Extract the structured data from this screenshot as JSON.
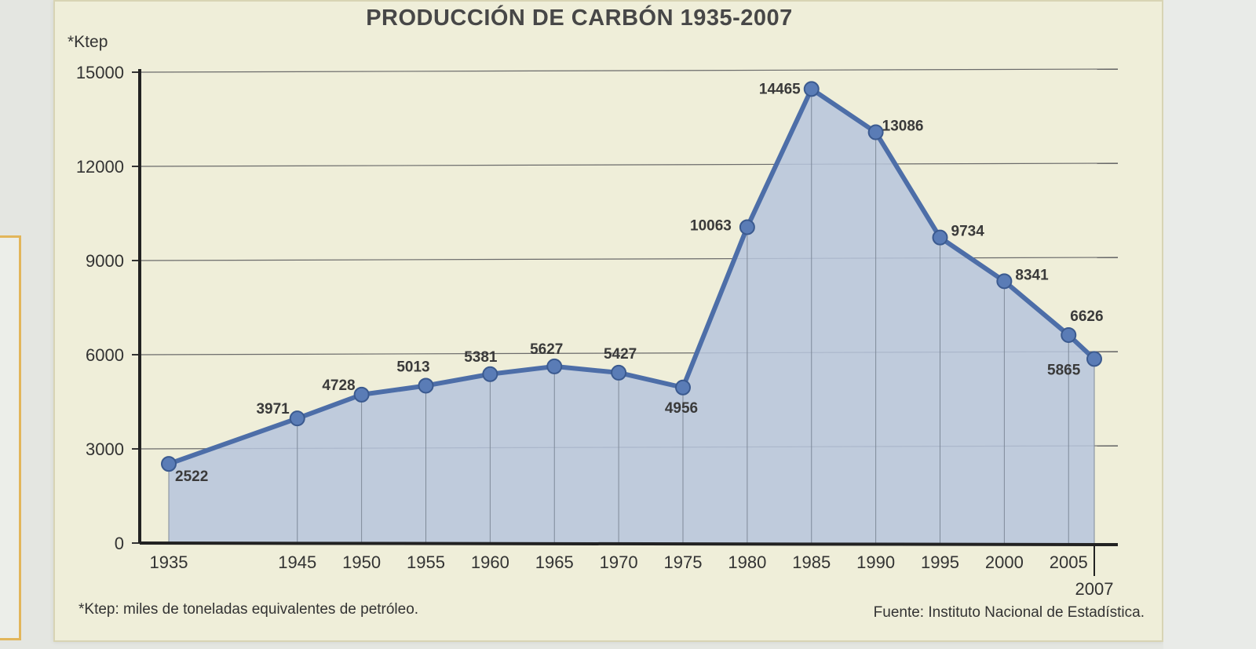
{
  "chart_data": {
    "type": "area",
    "title": "PRODUCCIÓN DE CARBÓN 1935-2007",
    "ylabel": "*Ktep",
    "xlabel": "",
    "ylim": [
      0,
      15000
    ],
    "yticks": [
      0,
      3000,
      6000,
      9000,
      12000,
      15000
    ],
    "y_tick_labels": [
      "0",
      "3000",
      "6000",
      "9000",
      "12000",
      "15000"
    ],
    "x_tick_labels": [
      "1935",
      "1945",
      "1950",
      "1955",
      "1960",
      "1965",
      "1970",
      "1975",
      "1980",
      "1985",
      "1990",
      "1995",
      "2000",
      "2005",
      "2007"
    ],
    "x": [
      1935,
      1945,
      1950,
      1955,
      1960,
      1965,
      1970,
      1975,
      1980,
      1985,
      1990,
      1995,
      2000,
      2005,
      2007
    ],
    "values": [
      2522,
      3971,
      4728,
      5013,
      5381,
      5627,
      5427,
      4956,
      10063,
      14465,
      13086,
      9734,
      8341,
      6626,
      5865
    ],
    "data_labels": [
      "2522",
      "3971",
      "4728",
      "5013",
      "5381",
      "5627",
      "5427",
      "4956",
      "10063",
      "14465",
      "13086",
      "9734",
      "8341",
      "6626",
      "5865"
    ],
    "grid": true,
    "line_color": "#4d6ea8",
    "fill_color": "#b6c4dc",
    "footnote": "*Ktep: miles de toneladas equivalentes de petróleo.",
    "source": "Fuente: Instituto Nacional de Estadística."
  }
}
